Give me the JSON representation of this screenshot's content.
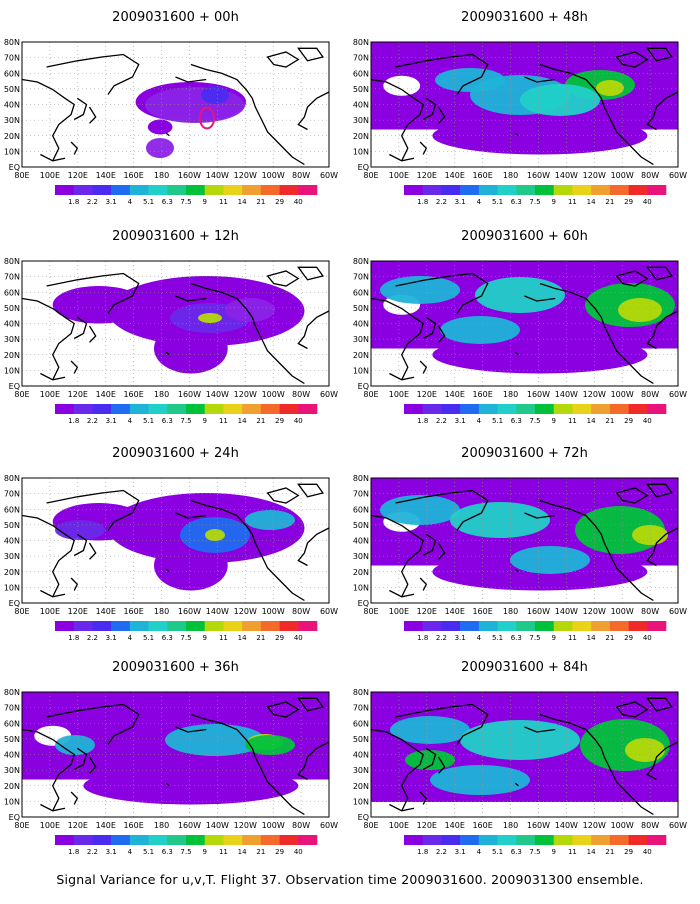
{
  "panels": [
    {
      "id": "p00",
      "title": "2009031600 + 00h",
      "fill": "sparse",
      "blobs": [
        [
          195,
          105,
          50,
          18,
          "#8b22e6"
        ],
        [
          215,
          95,
          14,
          9,
          "#4a2cf0"
        ],
        [
          160,
          148,
          14,
          10,
          "#8b22e6"
        ],
        [
          207,
          118,
          12,
          13,
          "none"
        ]
      ],
      "contour": true
    },
    {
      "id": "p48",
      "title": "2009031600 + 48h",
      "fill": "dense",
      "blobs": [
        [
          470,
          80,
          35,
          12,
          "#1fb3d8"
        ],
        [
          520,
          95,
          50,
          20,
          "#1fb3d8"
        ],
        [
          600,
          85,
          35,
          15,
          "#00c23a"
        ],
        [
          610,
          88,
          14,
          8,
          "#b4d80a"
        ],
        [
          560,
          100,
          40,
          16,
          "#21d0c8"
        ]
      ]
    },
    {
      "id": "p12",
      "title": "2009031600 + 12h",
      "fill": "medium",
      "blobs": [
        [
          210,
          318,
          40,
          15,
          "#6a28ea"
        ],
        [
          210,
          318,
          12,
          5,
          "#b4d80a"
        ],
        [
          250,
          310,
          25,
          12,
          "#8b22e6"
        ]
      ]
    },
    {
      "id": "p60",
      "title": "2009031600 + 60h",
      "fill": "dense",
      "blobs": [
        [
          420,
          290,
          40,
          14,
          "#1fb3d8"
        ],
        [
          520,
          295,
          45,
          18,
          "#21d0c8"
        ],
        [
          630,
          305,
          45,
          22,
          "#00c23a"
        ],
        [
          640,
          310,
          22,
          12,
          "#b4d80a"
        ],
        [
          480,
          330,
          40,
          14,
          "#1fb3d8"
        ]
      ]
    },
    {
      "id": "p24",
      "title": "2009031600 + 24h",
      "fill": "medium",
      "blobs": [
        [
          215,
          535,
          35,
          18,
          "#1f6cf0"
        ],
        [
          215,
          535,
          10,
          6,
          "#b4d80a"
        ],
        [
          270,
          520,
          25,
          10,
          "#1fb3d8"
        ],
        [
          80,
          530,
          25,
          10,
          "#6a28ea"
        ]
      ]
    },
    {
      "id": "p72",
      "title": "2009031600 + 72h",
      "fill": "dense",
      "blobs": [
        [
          420,
          510,
          40,
          15,
          "#1fb3d8"
        ],
        [
          500,
          520,
          50,
          18,
          "#21d0c8"
        ],
        [
          620,
          530,
          45,
          24,
          "#00c23a"
        ],
        [
          650,
          535,
          18,
          10,
          "#b4d80a"
        ],
        [
          550,
          560,
          40,
          14,
          "#1fb3d8"
        ]
      ]
    },
    {
      "id": "p36",
      "title": "2009031600 + 36h",
      "fill": "dense",
      "blobs": [
        [
          75,
          745,
          20,
          10,
          "#1fb3d8"
        ],
        [
          215,
          740,
          50,
          16,
          "#1fb3d8"
        ],
        [
          265,
          742,
          18,
          8,
          "#b4d80a"
        ],
        [
          270,
          745,
          25,
          10,
          "#00c23a"
        ]
      ]
    },
    {
      "id": "p84",
      "title": "2009031600 + 84h",
      "fill": "full",
      "blobs": [
        [
          430,
          730,
          40,
          14,
          "#1fb3d8"
        ],
        [
          520,
          740,
          60,
          20,
          "#21d0c8"
        ],
        [
          625,
          745,
          45,
          26,
          "#00c23a"
        ],
        [
          645,
          750,
          20,
          12,
          "#b4d80a"
        ],
        [
          480,
          780,
          50,
          15,
          "#1fb3d8"
        ],
        [
          430,
          760,
          25,
          10,
          "#00c23a"
        ]
      ]
    }
  ],
  "lat_labels": [
    "80N",
    "70N",
    "60N",
    "50N",
    "40N",
    "30N",
    "20N",
    "10N",
    "EQ"
  ],
  "lon_labels": [
    "80E",
    "100E",
    "120E",
    "140E",
    "160E",
    "180",
    "160W",
    "140W",
    "120W",
    "100W",
    "80W",
    "60W"
  ],
  "colorbar": {
    "labels": [
      "1.8",
      "2.2",
      "3.1",
      "4",
      "5.1",
      "6.3",
      "7.5",
      "9",
      "11",
      "14",
      "21",
      "29",
      "40"
    ],
    "colors": [
      "#8b00e0",
      "#6a28ea",
      "#4a2cf0",
      "#1f6cf0",
      "#1fb3d8",
      "#21d0c8",
      "#20c88a",
      "#00c23a",
      "#b4d80a",
      "#e8d21a",
      "#f0a030",
      "#f36a2a",
      "#f02a2a",
      "#e8147a"
    ]
  },
  "footer": "Signal Variance for u,v,T. Flight 37. Observation time 2009031600. 2009031300 ensemble."
}
